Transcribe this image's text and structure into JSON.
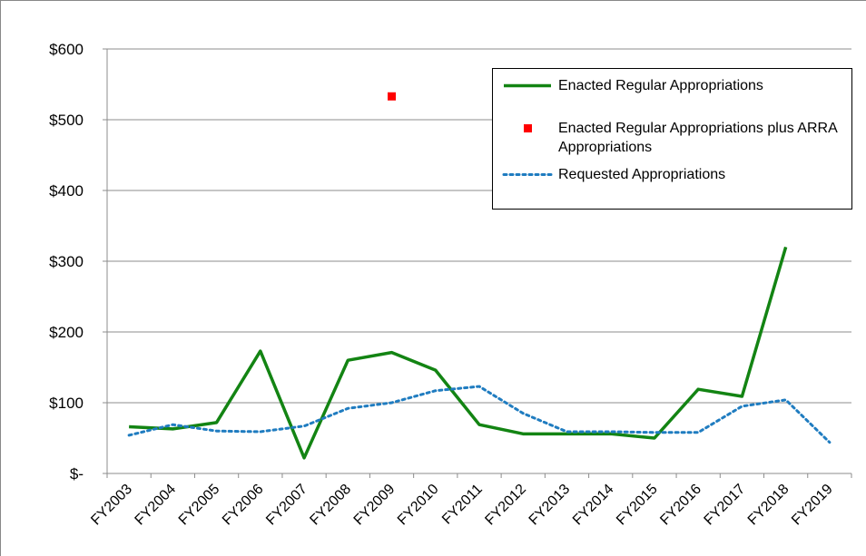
{
  "chart_data": {
    "type": "line",
    "categories": [
      "FY2003",
      "FY2004",
      "FY2005",
      "FY2006",
      "FY2007",
      "FY2008",
      "FY2009",
      "FY2010",
      "FY2011",
      "FY2012",
      "FY2013",
      "FY2014",
      "FY2015",
      "FY2016",
      "FY2017",
      "FY2018",
      "FY2019"
    ],
    "series": [
      {
        "name": "Enacted Regular Appropriations",
        "color": "#138413",
        "style": "solid",
        "values": [
          66,
          63,
          72,
          173,
          22,
          160,
          171,
          146,
          69,
          56,
          56,
          56,
          50,
          119,
          109,
          320,
          null
        ]
      },
      {
        "name": "Enacted Regular Appropriations plus ARRA Appropriations",
        "color": "#ff0000",
        "style": "marker",
        "values": [
          null,
          null,
          null,
          null,
          null,
          null,
          533,
          null,
          null,
          null,
          null,
          null,
          null,
          null,
          null,
          null,
          null
        ]
      },
      {
        "name": "Requested Appropriations",
        "color": "#1f7cc0",
        "style": "dotted",
        "values": [
          54,
          69,
          60,
          59,
          67,
          92,
          100,
          117,
          123,
          85,
          59,
          59,
          58,
          58,
          95,
          104,
          44
        ]
      }
    ],
    "ylim": [
      0,
      600
    ],
    "yticks": [
      {
        "value": 0,
        "label": "$-"
      },
      {
        "value": 100,
        "label": "$100"
      },
      {
        "value": 200,
        "label": "$200"
      },
      {
        "value": 300,
        "label": "$300"
      },
      {
        "value": 400,
        "label": "$400"
      },
      {
        "value": 500,
        "label": "$500"
      },
      {
        "value": 600,
        "label": "$600"
      }
    ],
    "grid": true,
    "legend": "upper right"
  }
}
